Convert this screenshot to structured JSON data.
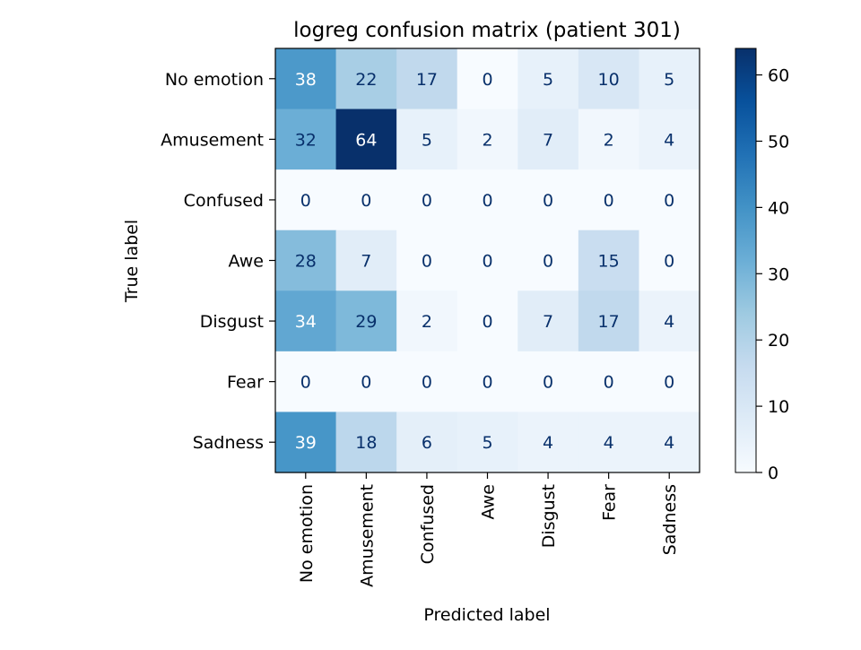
{
  "chart_data": {
    "type": "heatmap",
    "title": "logreg confusion matrix (patient 301)",
    "xlabel": "Predicted label",
    "ylabel": "True label",
    "x_categories": [
      "No emotion",
      "Amusement",
      "Confused",
      "Awe",
      "Disgust",
      "Fear",
      "Sadness"
    ],
    "y_categories": [
      "No emotion",
      "Amusement",
      "Confused",
      "Awe",
      "Disgust",
      "Fear",
      "Sadness"
    ],
    "values": [
      [
        38,
        22,
        17,
        0,
        5,
        10,
        5
      ],
      [
        32,
        64,
        5,
        2,
        7,
        2,
        4
      ],
      [
        0,
        0,
        0,
        0,
        0,
        0,
        0
      ],
      [
        28,
        7,
        0,
        0,
        0,
        15,
        0
      ],
      [
        34,
        29,
        2,
        0,
        7,
        17,
        4
      ],
      [
        0,
        0,
        0,
        0,
        0,
        0,
        0
      ],
      [
        39,
        18,
        6,
        5,
        4,
        4,
        4
      ]
    ],
    "colormap": "Blues",
    "color_range": [
      0,
      64
    ],
    "colorbar_ticks": [
      0,
      10,
      20,
      30,
      40,
      50,
      60
    ],
    "text_color_dark": "#08306b",
    "text_color_light": "#ffffff"
  }
}
